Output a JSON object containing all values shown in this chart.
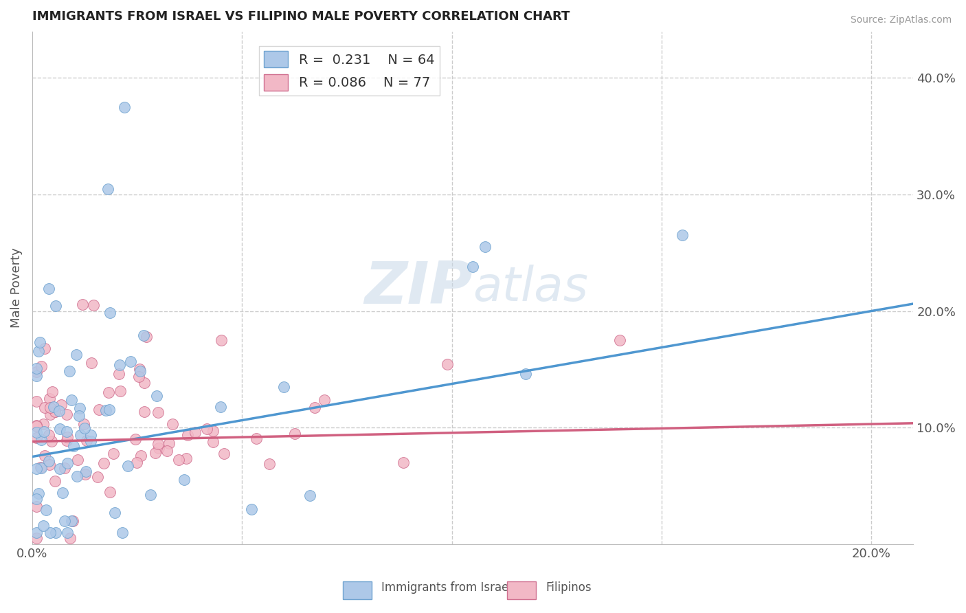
{
  "title": "IMMIGRANTS FROM ISRAEL VS FILIPINO MALE POVERTY CORRELATION CHART",
  "source_text": "Source: ZipAtlas.com",
  "ylabel": "Male Poverty",
  "xlim": [
    0.0,
    0.21
  ],
  "ylim": [
    0.0,
    0.44
  ],
  "xtick_positions": [
    0.0,
    0.1,
    0.2
  ],
  "xtick_labels": [
    "0.0%",
    "",
    "20.0%"
  ],
  "ytick_right_values": [
    0.1,
    0.2,
    0.3,
    0.4
  ],
  "ytick_right_labels": [
    "10.0%",
    "20.0%",
    "30.0%",
    "40.0%"
  ],
  "israel_color": "#adc8e8",
  "israel_edge_color": "#6fa3d0",
  "filipino_color": "#f2b8c6",
  "filipino_edge_color": "#d07090",
  "israel_line_color": "#4f97d0",
  "filipino_line_color": "#d06080",
  "israel_R": 0.231,
  "israel_N": 64,
  "filipino_R": 0.086,
  "filipino_N": 77,
  "watermark_zip": "ZIP",
  "watermark_atlas": "atlas",
  "legend_label_israel": "Immigrants from Israel",
  "legend_label_filipino": "Filipinos",
  "background_color": "#ffffff",
  "grid_color": "#cccccc",
  "israel_regression_start_y": 0.075,
  "israel_regression_end_y": 0.2,
  "filipino_regression_start_y": 0.088,
  "filipino_regression_end_y": 0.103
}
